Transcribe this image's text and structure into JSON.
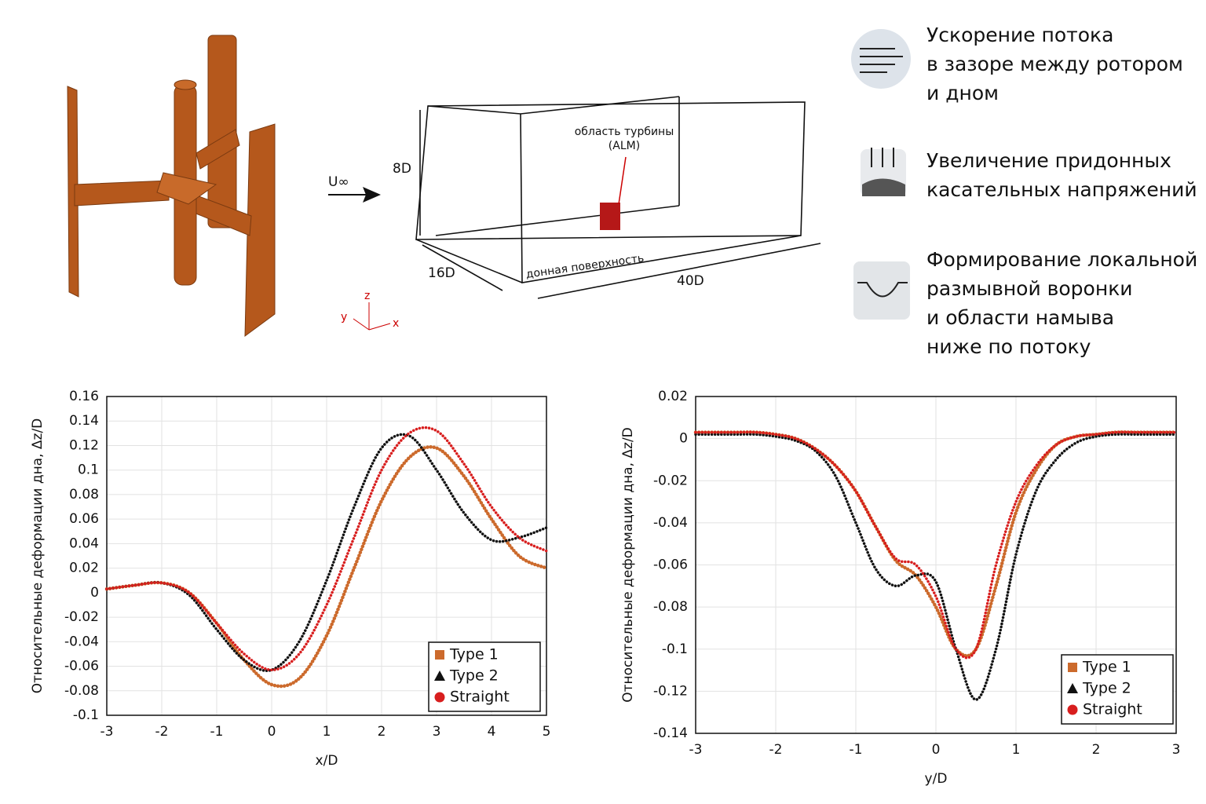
{
  "diagram": {
    "turbine_region": [
      "область турбины",
      "(ALM)"
    ],
    "inflow": "U∞",
    "height": "8D",
    "width": "16D",
    "length": "40D",
    "bottom": "донная поверхность",
    "axes": {
      "z": "z",
      "y": "y",
      "x": "x"
    },
    "notes": [
      {
        "lines": [
          "Ускорение потока",
          "в зазоре между ротором",
          "и дном"
        ]
      },
      {
        "lines": [
          "Увеличение придонных",
          "касательных напряжений"
        ]
      },
      {
        "lines": [
          "Формирование локальной",
          "размывной воронки",
          "и области намыва",
          "ниже по потоку"
        ]
      }
    ]
  },
  "chart_data": [
    {
      "type": "line",
      "x_label": "x/D",
      "y_label": "Относительные деформации дна, Δz/D",
      "legend": "lower right",
      "grid": true,
      "xlim": [
        -3,
        5
      ],
      "xticks": [
        -3,
        -2,
        -1,
        0,
        1,
        2,
        3,
        4,
        5
      ],
      "ylim": [
        -0.1,
        0.16
      ],
      "yticks": [
        -0.1,
        -0.08,
        -0.06,
        -0.04,
        -0.02,
        0,
        0.02,
        0.04,
        0.06,
        0.08,
        0.1,
        0.12,
        0.14,
        0.16
      ],
      "x": [
        -3,
        -2.5,
        -2,
        -1.5,
        -1,
        -0.5,
        0,
        0.5,
        1,
        1.5,
        2,
        2.5,
        3,
        3.5,
        4,
        4.5,
        5
      ],
      "series": [
        {
          "name": "Type 1",
          "color": "#cc6a2c",
          "marker": "square",
          "values": [
            0.003,
            0.006,
            0.008,
            0.0,
            -0.025,
            -0.055,
            -0.075,
            -0.07,
            -0.035,
            0.02,
            0.075,
            0.11,
            0.118,
            0.095,
            0.06,
            0.03,
            0.02
          ]
        },
        {
          "name": "Type 2",
          "color": "#111111",
          "marker": "triangle",
          "values": [
            0.003,
            0.006,
            0.008,
            -0.002,
            -0.03,
            -0.055,
            -0.063,
            -0.04,
            0.01,
            0.07,
            0.118,
            0.128,
            0.1,
            0.065,
            0.043,
            0.045,
            0.053
          ]
        },
        {
          "name": "Straight",
          "color": "#d81e1e",
          "marker": "circle",
          "values": [
            0.003,
            0.006,
            0.008,
            0.0,
            -0.025,
            -0.05,
            -0.063,
            -0.05,
            -0.01,
            0.045,
            0.1,
            0.13,
            0.132,
            0.105,
            0.07,
            0.045,
            0.034
          ]
        }
      ]
    },
    {
      "type": "line",
      "x_label": "y/D",
      "y_label": "Относительные деформации дна, Δz/D",
      "legend": "lower right",
      "grid": true,
      "xlim": [
        -3,
        3
      ],
      "xticks": [
        -3,
        -2,
        -1,
        0,
        1,
        2,
        3
      ],
      "ylim": [
        -0.14,
        0.02
      ],
      "yticks": [
        -0.14,
        -0.12,
        -0.1,
        -0.08,
        -0.06,
        -0.04,
        -0.02,
        0,
        0.02
      ],
      "x": [
        -3,
        -2.75,
        -2.5,
        -2.25,
        -2,
        -1.75,
        -1.5,
        -1.25,
        -1,
        -0.75,
        -0.5,
        -0.25,
        0,
        0.25,
        0.5,
        0.75,
        1,
        1.25,
        1.5,
        1.75,
        2,
        2.25,
        2.5,
        2.75,
        3
      ],
      "series": [
        {
          "name": "Type 1",
          "color": "#cc6a2c",
          "marker": "square",
          "values": [
            0.003,
            0.003,
            0.003,
            0.003,
            0.002,
            0.0,
            -0.005,
            -0.013,
            -0.025,
            -0.042,
            -0.058,
            -0.065,
            -0.08,
            -0.1,
            -0.1,
            -0.07,
            -0.035,
            -0.015,
            -0.003,
            0.001,
            0.002,
            0.003,
            0.003,
            0.003,
            0.003
          ]
        },
        {
          "name": "Type 2",
          "color": "#111111",
          "marker": "triangle",
          "values": [
            0.002,
            0.002,
            0.002,
            0.002,
            0.001,
            -0.001,
            -0.006,
            -0.018,
            -0.04,
            -0.062,
            -0.07,
            -0.065,
            -0.068,
            -0.1,
            -0.124,
            -0.1,
            -0.055,
            -0.025,
            -0.01,
            -0.002,
            0.001,
            0.002,
            0.002,
            0.002,
            0.002
          ]
        },
        {
          "name": "Straight",
          "color": "#d81e1e",
          "marker": "circle",
          "values": [
            0.003,
            0.003,
            0.003,
            0.003,
            0.002,
            0.0,
            -0.005,
            -0.013,
            -0.025,
            -0.042,
            -0.057,
            -0.06,
            -0.075,
            -0.1,
            -0.1,
            -0.06,
            -0.03,
            -0.013,
            -0.003,
            0.001,
            0.002,
            0.003,
            0.003,
            0.003,
            0.003
          ]
        }
      ]
    }
  ]
}
